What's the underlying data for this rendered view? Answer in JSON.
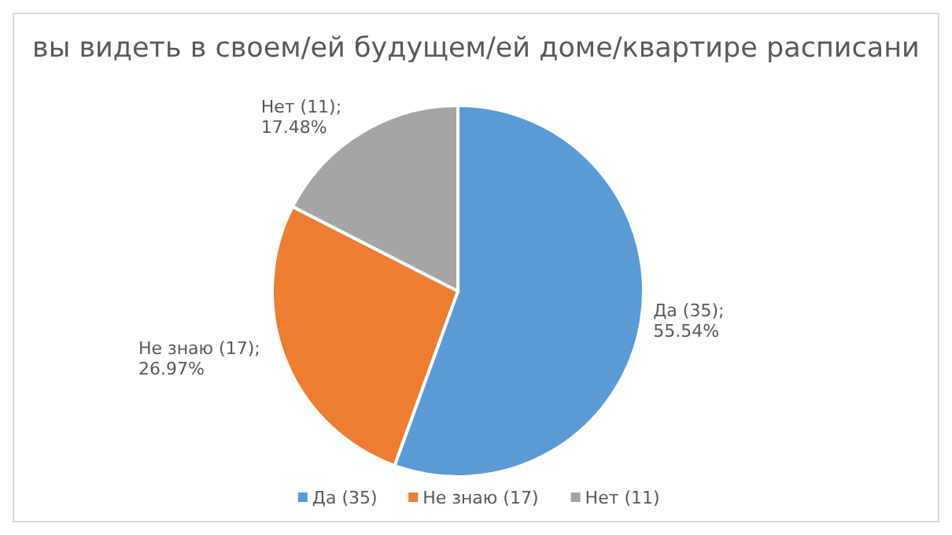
{
  "chart_data": {
    "type": "pie",
    "title": "вы видеть в своем/ей будущем/ей доме/квартире расписани",
    "categories": [
      "Да (35)",
      "Не знаю (17)",
      "Нет (11)"
    ],
    "values": [
      55.54,
      26.97,
      17.48
    ],
    "colors": [
      "#5b9bd5",
      "#ed7d31",
      "#a5a5a5"
    ],
    "value_labels": [
      "Да (35);\n55.54%",
      "Не знаю (17);\n26.97%",
      "Нет (11);\n17.48%"
    ],
    "legend": "bottom"
  }
}
